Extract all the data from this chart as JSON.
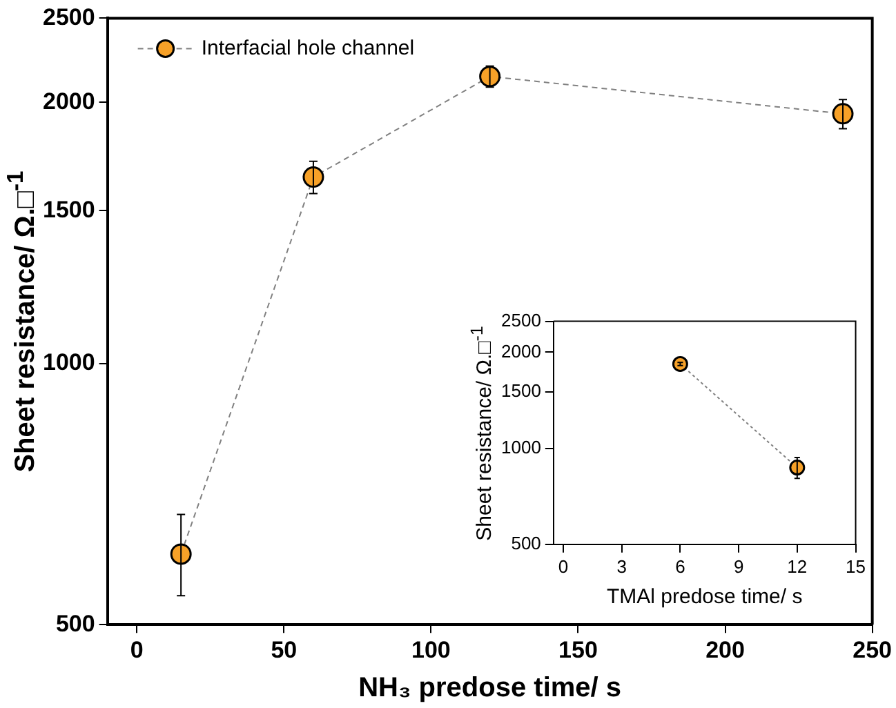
{
  "chart_data": [
    {
      "type": "line",
      "xlabel": "NH₃ predose time/ s",
      "ylabel": "Sheet resistance/ Ω.□$^{-1}$",
      "x": [
        15,
        60,
        120,
        240
      ],
      "series": [
        {
          "name": "Interfacial hole channel",
          "color": "#f7a128",
          "values": [
            603,
            1640,
            2142,
            1940
          ],
          "errors": [
            [
              540,
              670
            ],
            70,
            60,
            75
          ]
        }
      ],
      "xlim": [
        -10,
        250
      ],
      "xticks": [
        0,
        50,
        100,
        150,
        200,
        250
      ],
      "ylim": [
        500,
        2500
      ],
      "yticks": [
        500,
        1000,
        1500,
        2000,
        2500
      ],
      "log": "y",
      "grid": false,
      "legend": "top left",
      "marker": "circle",
      "line_style": "dashed"
    },
    {
      "type": "line",
      "xlabel": "TMAl predose time/ s",
      "ylabel": "Sheet resistance/ Ω.□$^{-1}$",
      "x": [
        6,
        12
      ],
      "series": [
        {
          "color": "#f7a128",
          "values": [
            1837,
            870
          ],
          "errors": [
            20,
            65
          ]
        }
      ],
      "xlim": [
        -0.5,
        15
      ],
      "xticks": [
        0,
        3,
        6,
        9,
        12,
        15
      ],
      "ylim": [
        500,
        2500
      ],
      "yticks": [
        500,
        1000,
        1500,
        2000,
        2500
      ],
      "log": "y",
      "grid": false,
      "marker": "circle",
      "line_style": "dotted"
    }
  ]
}
